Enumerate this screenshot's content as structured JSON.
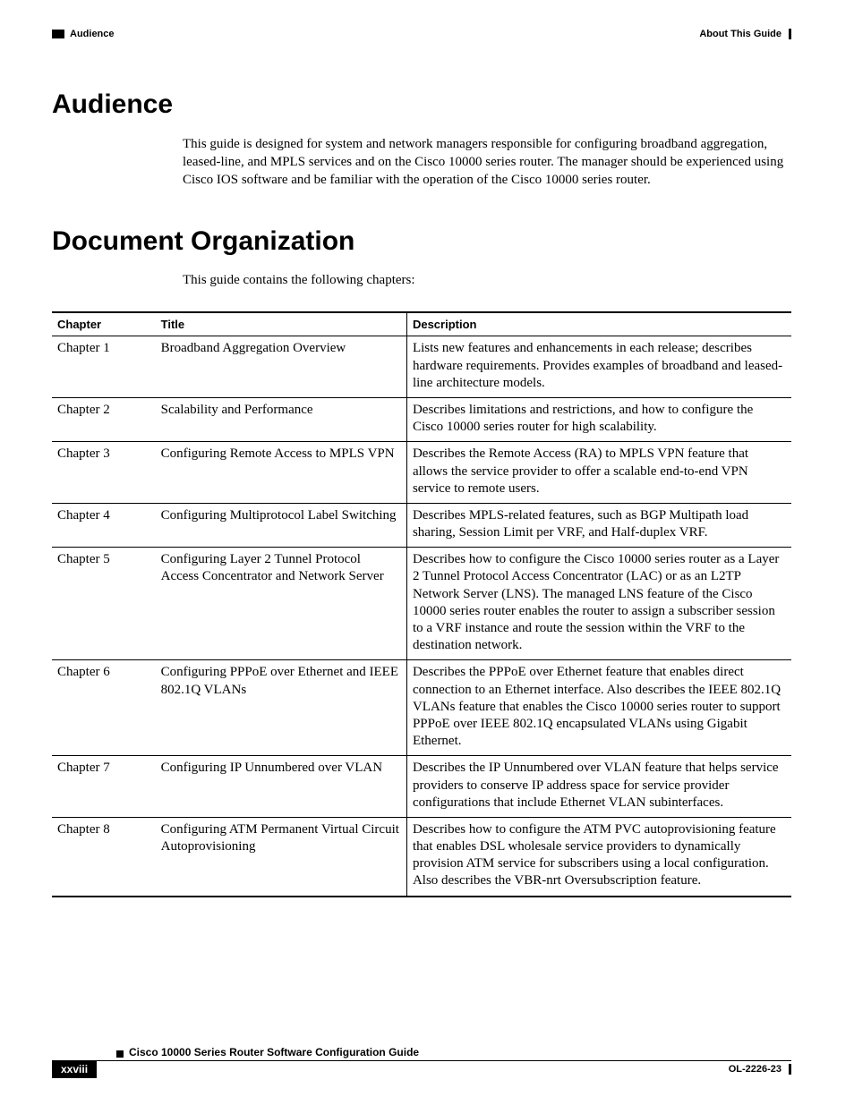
{
  "header": {
    "left_label": "Audience",
    "right_label": "About This Guide"
  },
  "sections": {
    "audience": {
      "heading": "Audience",
      "body": "This guide is designed for system and network managers responsible for configuring broadband aggregation, leased-line, and MPLS services and on the Cisco 10000 series router. The manager should be experienced using Cisco IOS software and be familiar with the operation of the Cisco 10000 series router."
    },
    "doc_org": {
      "heading": "Document Organization",
      "intro": "This guide contains the following chapters:"
    }
  },
  "table": {
    "headers": {
      "col1": "Chapter",
      "col2": "Title",
      "col3": "Description"
    },
    "rows": [
      {
        "chapter": "Chapter 1",
        "title": "Broadband Aggregation Overview",
        "desc": "Lists new features and enhancements in each release; describes hardware requirements. Provides examples of broadband and leased-line architecture models."
      },
      {
        "chapter": "Chapter 2",
        "title": "Scalability and Performance",
        "desc": "Describes limitations and restrictions, and how to configure the Cisco 10000 series router for high scalability."
      },
      {
        "chapter": "Chapter 3",
        "title": "Configuring Remote Access to MPLS VPN",
        "desc": "Describes the Remote Access (RA) to MPLS VPN feature that allows the service provider to offer a scalable end-to-end VPN service to remote users."
      },
      {
        "chapter": "Chapter 4",
        "title": "Configuring Multiprotocol Label Switching",
        "desc": "Describes MPLS-related features, such as BGP Multipath load sharing, Session Limit per VRF, and Half-duplex VRF."
      },
      {
        "chapter": "Chapter 5",
        "title": "Configuring Layer 2 Tunnel Protocol Access Concentrator and Network Server",
        "desc": "Describes how to configure the Cisco 10000 series router as a Layer 2 Tunnel Protocol Access Concentrator (LAC) or as an L2TP Network Server (LNS). The managed LNS feature of the Cisco 10000 series router enables the router to assign a subscriber session to a VRF instance and route the session within the VRF to the destination network."
      },
      {
        "chapter": "Chapter 6",
        "title": "Configuring PPPoE over Ethernet and IEEE 802.1Q VLANs",
        "desc": "Describes the PPPoE over Ethernet feature that enables direct connection to an Ethernet interface. Also describes the IEEE 802.1Q VLANs feature that enables the Cisco 10000 series router to support PPPoE over IEEE 802.1Q encapsulated VLANs using Gigabit Ethernet."
      },
      {
        "chapter": "Chapter 7",
        "title": "Configuring IP Unnumbered over VLAN",
        "desc": "Describes the IP Unnumbered over VLAN feature that helps service providers to conserve IP address space for service provider configurations that include Ethernet VLAN subinterfaces."
      },
      {
        "chapter": "Chapter 8",
        "title": "Configuring ATM Permanent Virtual Circuit Autoprovisioning",
        "desc": "Describes how to configure the ATM PVC autoprovisioning feature that enables DSL wholesale service providers to dynamically provision ATM service for subscribers using a local configuration. Also describes the VBR-nrt Oversubscription feature."
      }
    ]
  },
  "footer": {
    "guide_title": "Cisco 10000 Series Router Software Configuration Guide",
    "page_number": "xxviii",
    "doc_id": "OL-2226-23"
  }
}
